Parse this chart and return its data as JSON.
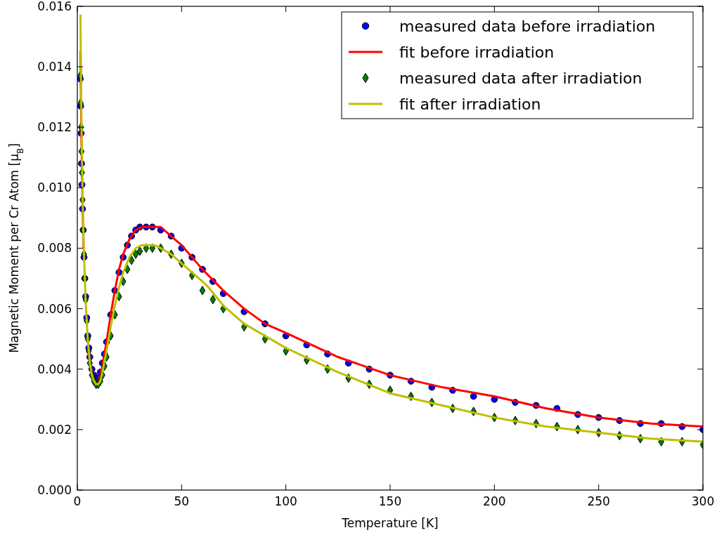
{
  "chart_data": {
    "type": "scatter",
    "xlabel": "Temperature [K]",
    "ylabel": "Magnetic Moment per Cr Atom [μ$_{B}$]",
    "xlim": [
      0,
      300
    ],
    "ylim": [
      0,
      0.016
    ],
    "xticks": [
      0,
      50,
      100,
      150,
      200,
      250,
      300
    ],
    "yticks": [
      {
        "value": 0,
        "label": "0.000"
      },
      {
        "value": 0.002,
        "label": "0.002"
      },
      {
        "value": 0.004,
        "label": "0.004"
      },
      {
        "value": 0.006,
        "label": "0.006"
      },
      {
        "value": 0.008,
        "label": "0.008"
      },
      {
        "value": 0.01,
        "label": "0.010"
      },
      {
        "value": 0.012,
        "label": "0.012"
      },
      {
        "value": 0.014,
        "label": "0.014"
      },
      {
        "value": 0.016,
        "label": "0.016"
      }
    ],
    "grid": false,
    "legend": "top right",
    "series": [
      {
        "name": "measured data before irradiation",
        "marker": "circle",
        "color": "#0000ff",
        "x": [
          1.4,
          1.6,
          1.8,
          2,
          2.2,
          2.5,
          2.8,
          3.2,
          3.6,
          4,
          4.5,
          5,
          5.5,
          6,
          7,
          8,
          9,
          10,
          11,
          12,
          13,
          14,
          16,
          18,
          20,
          22,
          24,
          26,
          28,
          30,
          33,
          36,
          40,
          45,
          50,
          55,
          60,
          65,
          70,
          80,
          90,
          100,
          110,
          120,
          130,
          140,
          150,
          160,
          170,
          180,
          190,
          200,
          210,
          220,
          230,
          240,
          250,
          260,
          270,
          280,
          290,
          300
        ],
        "values": [
          0.0136,
          0.0127,
          0.0118,
          0.0108,
          0.0101,
          0.0093,
          0.0086,
          0.0077,
          0.007,
          0.0064,
          0.0057,
          0.0051,
          0.0047,
          0.0044,
          0.004,
          0.0038,
          0.0037,
          0.0037,
          0.0039,
          0.0042,
          0.0045,
          0.0049,
          0.0058,
          0.0066,
          0.0072,
          0.0077,
          0.0081,
          0.0084,
          0.0086,
          0.0087,
          0.0087,
          0.0087,
          0.0086,
          0.0084,
          0.008,
          0.0077,
          0.0073,
          0.0069,
          0.0065,
          0.0059,
          0.0055,
          0.0051,
          0.0048,
          0.0045,
          0.0042,
          0.004,
          0.0038,
          0.0036,
          0.0034,
          0.0033,
          0.0031,
          0.003,
          0.0029,
          0.0028,
          0.0027,
          0.0025,
          0.0024,
          0.0023,
          0.0022,
          0.0022,
          0.0021,
          0.002
        ]
      },
      {
        "name": "fit before irradiation",
        "type": "line",
        "marker": "none",
        "line_style": "solid",
        "color": "#ff0000",
        "x": [
          1.5,
          2,
          2.5,
          3,
          4,
          5,
          6,
          7,
          8,
          9,
          10,
          11,
          12,
          14,
          16,
          18,
          20,
          22,
          25,
          28,
          31,
          34,
          37,
          40,
          45,
          50,
          60,
          70,
          80,
          90,
          100,
          125,
          150,
          175,
          200,
          225,
          250,
          275,
          300
        ],
        "values": [
          0.0145,
          0.0115,
          0.0095,
          0.008,
          null,
          0.005,
          0.0043,
          0.0039,
          0.0037,
          0.0036,
          0.0036,
          0.0038,
          0.0041,
          0.0049,
          0.0058,
          0.0066,
          0.0073,
          0.0078,
          0.0083,
          0.0086,
          0.0087,
          0.0087,
          0.0087,
          0.0087,
          0.0084,
          0.0081,
          0.0073,
          0.0066,
          0.006,
          0.0055,
          0.0052,
          0.0044,
          0.0038,
          0.0034,
          0.0031,
          0.0027,
          0.0024,
          0.0022,
          0.0021
        ]
      },
      {
        "name": "measured data after irradiation",
        "marker": "diamond",
        "color": "#008000",
        "x": [
          1.4,
          1.6,
          1.8,
          2,
          2.2,
          2.5,
          2.8,
          3.2,
          3.6,
          4,
          4.5,
          5,
          5.5,
          6,
          7,
          8,
          9,
          10,
          11,
          12,
          13,
          14,
          16,
          18,
          20,
          22,
          24,
          26,
          28,
          30,
          33,
          36,
          40,
          45,
          50,
          55,
          60,
          65,
          70,
          80,
          90,
          100,
          110,
          120,
          130,
          140,
          150,
          160,
          170,
          180,
          190,
          200,
          210,
          220,
          230,
          240,
          250,
          260,
          270,
          280,
          290,
          300
        ],
        "values": [
          0.0137,
          0.0128,
          0.012,
          0.0112,
          0.0105,
          0.0096,
          0.0086,
          0.0078,
          0.007,
          0.0063,
          0.0056,
          0.005,
          0.0046,
          0.0042,
          0.0038,
          0.0036,
          0.0035,
          0.0035,
          0.0036,
          0.0038,
          0.0041,
          0.0044,
          0.0051,
          0.0058,
          0.0064,
          0.0069,
          0.0073,
          0.0076,
          0.0078,
          0.0079,
          0.008,
          0.008,
          0.008,
          0.0078,
          0.0075,
          0.0071,
          0.0066,
          0.0063,
          0.006,
          0.0054,
          0.005,
          0.0046,
          0.0043,
          0.004,
          0.0037,
          0.0035,
          0.0033,
          0.0031,
          0.0029,
          0.0027,
          0.0026,
          0.0024,
          0.0023,
          0.0022,
          0.0021,
          0.002,
          0.0019,
          0.0018,
          0.0017,
          0.0016,
          0.0016,
          0.0015
        ]
      },
      {
        "name": "fit after irradiation",
        "type": "line",
        "marker": "none",
        "line_style": "solid",
        "color": "#bfbf00",
        "x": [
          1.5,
          2,
          2.5,
          3,
          4,
          5,
          6,
          7,
          8,
          9,
          10,
          11,
          12,
          14,
          16,
          18,
          20,
          22,
          25,
          28,
          31,
          34,
          37,
          40,
          45,
          50,
          60,
          63,
          70,
          80,
          90,
          100,
          125,
          150,
          175,
          200,
          225,
          250,
          275,
          300
        ],
        "values": [
          0.0157,
          0.0122,
          0.0098,
          0.0082,
          0.0062,
          0.005,
          0.0042,
          0.0038,
          0.0036,
          0.0035,
          0.0035,
          0.0036,
          0.0039,
          0.0046,
          0.0054,
          0.0061,
          0.0067,
          0.0072,
          0.0077,
          0.008,
          0.0081,
          0.0081,
          0.0081,
          0.008,
          0.0078,
          0.0075,
          0.0069,
          0.0067,
          0.0061,
          0.0055,
          0.0051,
          0.0047,
          0.0039,
          0.0032,
          0.0028,
          0.0024,
          0.0021,
          0.0019,
          0.0017,
          0.0016
        ]
      }
    ]
  }
}
